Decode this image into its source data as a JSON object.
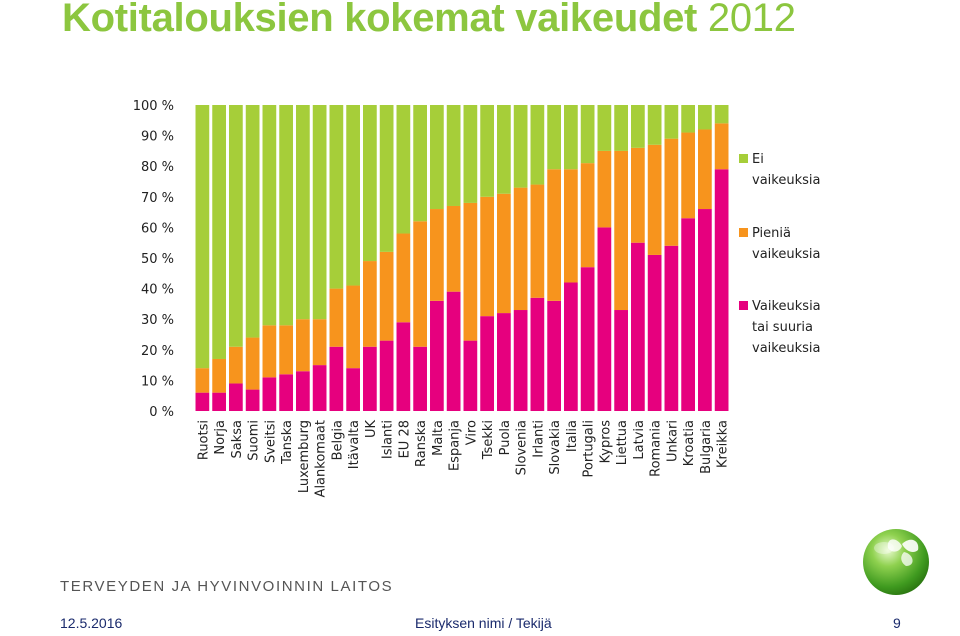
{
  "slide": {
    "title": "Kotitalouksien kokemat vaikeudet",
    "title_year": "2012",
    "org": "TERVEYDEN JA HYVINVOINNIN LAITOS",
    "footer_date": "12.5.2016",
    "footer_text": "Esityksen nimi / Tekijä",
    "page_number": "9"
  },
  "chart_data": {
    "type": "bar",
    "stacked": true,
    "ylim": [
      0,
      100
    ],
    "yticks": [
      "0 %",
      "10 %",
      "20 %",
      "30 %",
      "40 %",
      "50 %",
      "60 %",
      "70 %",
      "80 %",
      "90 %",
      "100 %"
    ],
    "legend_position": "right",
    "categories": [
      "Ruotsi",
      "Norja",
      "Saksa",
      "Suomi",
      "Sveitsi",
      "Tanska",
      "Luxemburg",
      "Alankomaat",
      "Belgia",
      "Itävalta",
      "UK",
      "Islanti",
      "EU 28",
      "Ranska",
      "Malta",
      "Espanja",
      "Viro",
      "Tsekki",
      "Puola",
      "Slovenia",
      "Irlanti",
      "Slovakia",
      "Italia",
      "Portugali",
      "Kypros",
      "Liettua",
      "Latvia",
      "Romania",
      "Unkari",
      "Kroatia",
      "Bulgaria",
      "Kreikka"
    ],
    "series": [
      {
        "name": "Vaikeuksia tai suuria vaikeuksia",
        "color": "#e6007e",
        "values": [
          6,
          6,
          9,
          7,
          11,
          12,
          13,
          15,
          21,
          14,
          21,
          23,
          29,
          21,
          36,
          39,
          23,
          31,
          32,
          33,
          37,
          36,
          42,
          47,
          60,
          33,
          55,
          51,
          54,
          63,
          66,
          79
        ]
      },
      {
        "name": "Pieniä vaikeuksia",
        "color": "#f7941d",
        "values": [
          8,
          11,
          12,
          17,
          17,
          16,
          17,
          15,
          19,
          27,
          28,
          29,
          29,
          41,
          30,
          28,
          45,
          39,
          39,
          40,
          37,
          43,
          37,
          34,
          25,
          52,
          31,
          36,
          35,
          28,
          26,
          15
        ]
      },
      {
        "name": "Ei vaikeuksia",
        "color": "#a6ce39",
        "values": [
          86,
          83,
          79,
          76,
          72,
          72,
          70,
          70,
          60,
          59,
          51,
          48,
          42,
          38,
          34,
          33,
          32,
          30,
          29,
          27,
          26,
          21,
          21,
          19,
          15,
          15,
          14,
          13,
          11,
          9,
          8,
          6
        ]
      }
    ],
    "legend": [
      {
        "lines": [
          "Ei",
          "vaikeuksia"
        ],
        "color": "#a6ce39"
      },
      {
        "lines": [
          "Pieniä",
          "vaikeuksia"
        ],
        "color": "#f7941d"
      },
      {
        "lines": [
          "Vaikeuksia",
          "tai suuria",
          "vaikeuksia"
        ],
        "color": "#e6007e"
      }
    ]
  }
}
